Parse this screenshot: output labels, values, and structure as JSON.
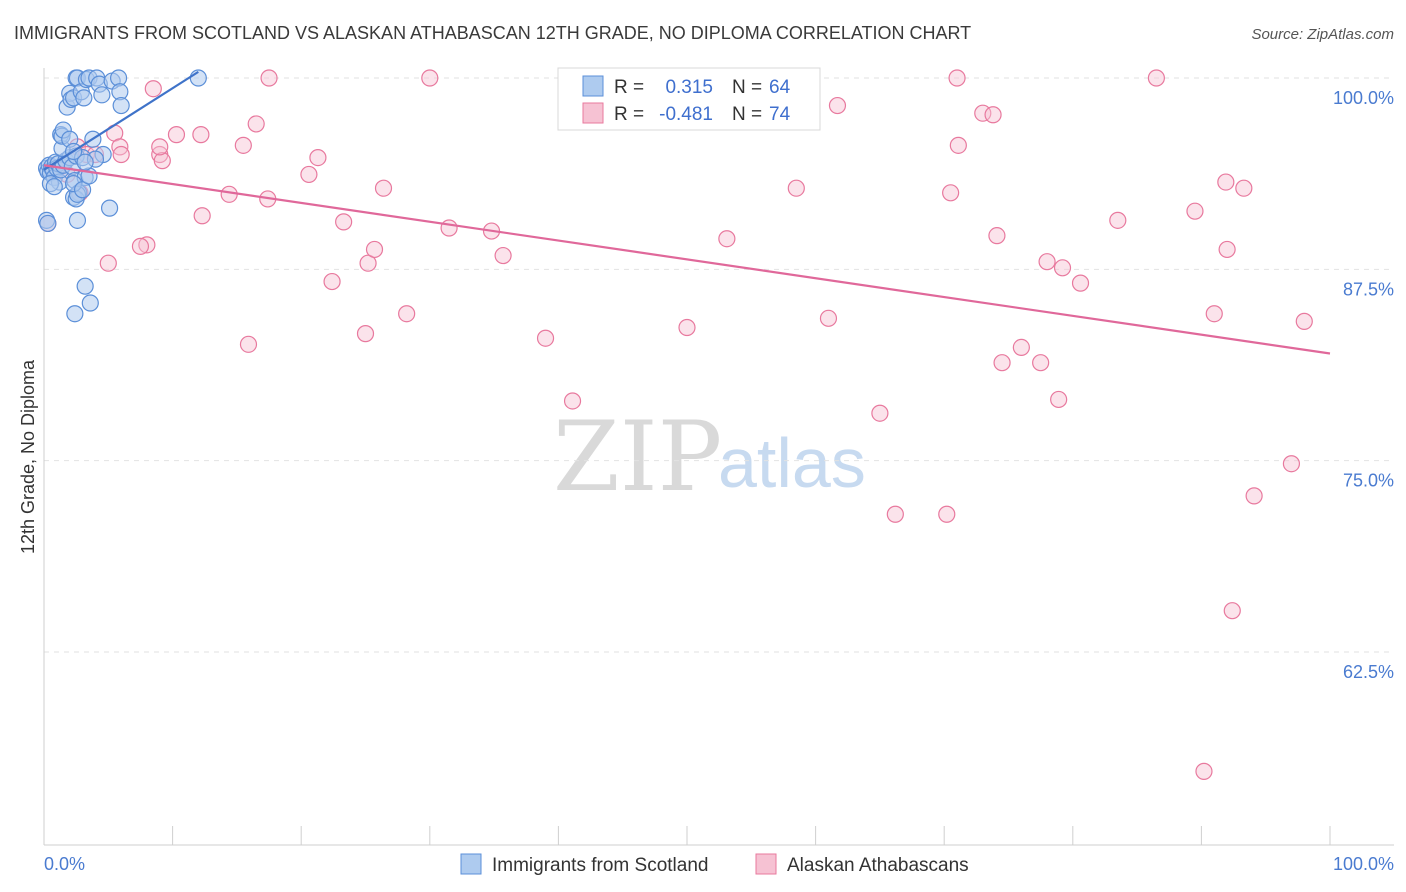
{
  "chart_data": {
    "type": "scatter",
    "title": "IMMIGRANTS FROM SCOTLAND VS ALASKAN ATHABASCAN 12TH GRADE, NO DIPLOMA CORRELATION CHART",
    "source": "Source: ZipAtlas.com",
    "ylabel": "12th Grade, No Diploma",
    "xlabel": "",
    "xlim": [
      0,
      100
    ],
    "ylim": [
      50,
      101.5
    ],
    "y_ticks": [
      {
        "value": 100,
        "label": "100.0%"
      },
      {
        "value": 87.5,
        "label": "87.5%"
      },
      {
        "value": 75,
        "label": "75.0%"
      },
      {
        "value": 62.5,
        "label": "62.5%"
      }
    ],
    "x_tick_labels": {
      "left": "0.0%",
      "right": "100.0%"
    },
    "watermark": {
      "zip": "ZIP",
      "atlas": "atlas"
    },
    "legend": {
      "r_label": "R =",
      "n_label": "N =",
      "entries": [
        {
          "r": "0.315",
          "n": "64"
        },
        {
          "r": "-0.481",
          "n": "74"
        }
      ]
    },
    "series": [
      {
        "name": "Immigrants from Scotland",
        "color": "#5b8fd8",
        "fill": "#aecbef",
        "trend": {
          "x": [
            0,
            12
          ],
          "y": [
            94.0,
            100.4
          ]
        },
        "points": [
          [
            0.2,
            94.1
          ],
          [
            0.3,
            93.9
          ],
          [
            0.4,
            94.3
          ],
          [
            0.5,
            93.8
          ],
          [
            0.6,
            94.2
          ],
          [
            0.7,
            94.0
          ],
          [
            0.8,
            93.5
          ],
          [
            0.9,
            94.5
          ],
          [
            1.0,
            94.1
          ],
          [
            1.1,
            94.4
          ],
          [
            1.2,
            93.2
          ],
          [
            1.3,
            94.0
          ],
          [
            0.5,
            93.1
          ],
          [
            0.8,
            92.9
          ],
          [
            1.5,
            94.3
          ],
          [
            1.7,
            94.6
          ],
          [
            2.0,
            94.8
          ],
          [
            2.2,
            94.2
          ],
          [
            2.4,
            93.3
          ],
          [
            2.5,
            94.9
          ],
          [
            2.7,
            92.5
          ],
          [
            3.0,
            94.8
          ],
          [
            3.2,
            93.5
          ],
          [
            1.4,
            95.4
          ],
          [
            1.3,
            96.3
          ],
          [
            1.4,
            96.2
          ],
          [
            1.5,
            96.6
          ],
          [
            2.0,
            96.0
          ],
          [
            1.8,
            98.1
          ],
          [
            2.0,
            99.0
          ],
          [
            2.1,
            98.6
          ],
          [
            2.3,
            98.7
          ],
          [
            2.5,
            100.0
          ],
          [
            2.6,
            100.0
          ],
          [
            2.9,
            99.1
          ],
          [
            3.1,
            98.7
          ],
          [
            3.3,
            99.9
          ],
          [
            3.5,
            100.0
          ],
          [
            4.1,
            100.0
          ],
          [
            4.3,
            99.6
          ],
          [
            4.5,
            98.9
          ],
          [
            5.3,
            99.8
          ],
          [
            5.8,
            100.0
          ],
          [
            5.9,
            99.1
          ],
          [
            6.0,
            98.2
          ],
          [
            12.0,
            100.0
          ],
          [
            2.3,
            92.2
          ],
          [
            2.5,
            92.1
          ],
          [
            2.6,
            92.4
          ],
          [
            2.3,
            93.1
          ],
          [
            3.0,
            92.7
          ],
          [
            3.5,
            93.6
          ],
          [
            4.6,
            95.0
          ],
          [
            5.1,
            91.5
          ],
          [
            4.0,
            94.7
          ],
          [
            3.8,
            96.0
          ],
          [
            2.3,
            95.2
          ],
          [
            3.2,
            94.5
          ],
          [
            2.6,
            90.7
          ],
          [
            3.2,
            86.4
          ],
          [
            3.6,
            85.3
          ],
          [
            2.4,
            84.6
          ],
          [
            0.2,
            90.7
          ],
          [
            0.3,
            90.5
          ]
        ]
      },
      {
        "name": "Alaskan Athabascans",
        "color": "#e8799e",
        "fill": "#f6c2d3",
        "trend": {
          "x": [
            0,
            100
          ],
          "y": [
            94.3,
            82.0
          ]
        },
        "points": [
          [
            0.3,
            90.5
          ],
          [
            1.0,
            94.0
          ],
          [
            1.8,
            93.7
          ],
          [
            2.6,
            95.5
          ],
          [
            2.8,
            92.5
          ],
          [
            3.3,
            95.0
          ],
          [
            4.0,
            95.0
          ],
          [
            5.5,
            96.4
          ],
          [
            5.9,
            95.5
          ],
          [
            6.0,
            95.0
          ],
          [
            8.0,
            89.1
          ],
          [
            5.0,
            87.9
          ],
          [
            7.5,
            89.0
          ],
          [
            9.0,
            95.0
          ],
          [
            9.2,
            94.6
          ],
          [
            9.0,
            95.5
          ],
          [
            8.5,
            99.3
          ],
          [
            10.3,
            96.3
          ],
          [
            12.2,
            96.3
          ],
          [
            12.3,
            91.0
          ],
          [
            14.4,
            92.4
          ],
          [
            15.5,
            95.6
          ],
          [
            15.9,
            82.6
          ],
          [
            16.5,
            97.0
          ],
          [
            17.4,
            92.1
          ],
          [
            17.5,
            100.0
          ],
          [
            20.6,
            93.7
          ],
          [
            21.3,
            94.8
          ],
          [
            22.4,
            86.7
          ],
          [
            23.3,
            90.6
          ],
          [
            25.0,
            83.3
          ],
          [
            25.2,
            87.9
          ],
          [
            25.7,
            88.8
          ],
          [
            26.4,
            92.8
          ],
          [
            28.2,
            84.6
          ],
          [
            30.0,
            100.0
          ],
          [
            31.5,
            90.2
          ],
          [
            34.8,
            90.0
          ],
          [
            35.7,
            88.4
          ],
          [
            39.0,
            83.0
          ],
          [
            41.1,
            78.9
          ],
          [
            50.0,
            83.7
          ],
          [
            53.1,
            89.5
          ],
          [
            58.5,
            92.8
          ],
          [
            61.0,
            84.3
          ],
          [
            61.7,
            98.2
          ],
          [
            65.0,
            78.1
          ],
          [
            66.2,
            71.5
          ],
          [
            70.2,
            71.5
          ],
          [
            70.5,
            92.5
          ],
          [
            71.0,
            100.0
          ],
          [
            71.1,
            95.6
          ],
          [
            73.0,
            97.7
          ],
          [
            73.8,
            97.6
          ],
          [
            74.1,
            89.7
          ],
          [
            74.5,
            81.4
          ],
          [
            76.0,
            82.4
          ],
          [
            77.5,
            81.4
          ],
          [
            78.0,
            88.0
          ],
          [
            78.9,
            79.0
          ],
          [
            79.2,
            87.6
          ],
          [
            80.6,
            86.6
          ],
          [
            83.5,
            90.7
          ],
          [
            86.5,
            100.0
          ],
          [
            89.5,
            91.3
          ],
          [
            90.2,
            54.7
          ],
          [
            91.0,
            84.6
          ],
          [
            92.0,
            88.8
          ],
          [
            92.4,
            65.2
          ],
          [
            93.3,
            92.8
          ],
          [
            94.1,
            72.7
          ],
          [
            97.0,
            74.8
          ],
          [
            98.0,
            84.1
          ],
          [
            91.9,
            93.2
          ]
        ]
      }
    ]
  }
}
